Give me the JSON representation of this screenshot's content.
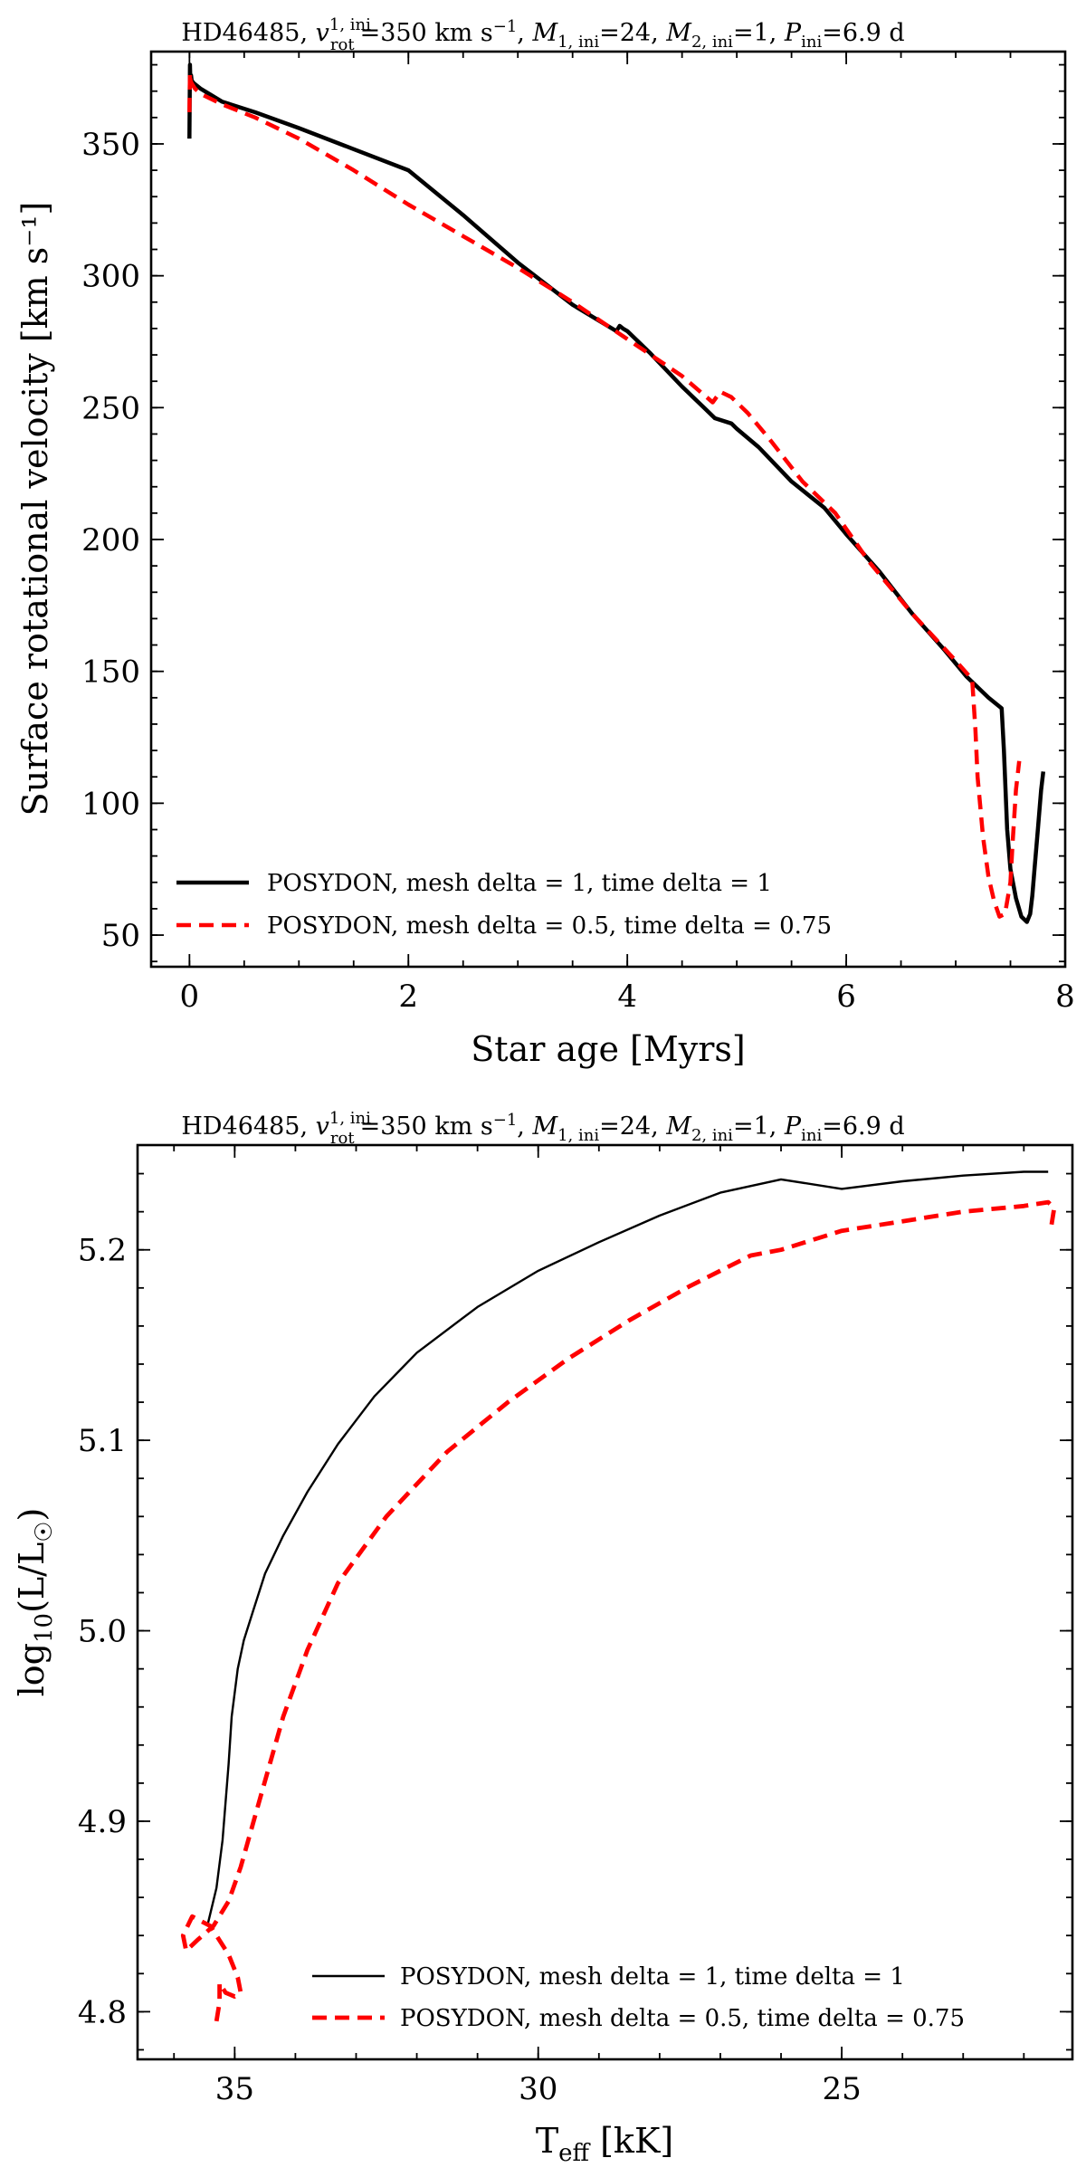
{
  "chart_data": [
    {
      "type": "line",
      "title": "HD46485, v_rot^{1,ini}=350 km s^{-1}, M_{1,ini}=24, M_{2,ini}=1, P_ini=6.9 d",
      "title_display": "HD46485, v_rot^{1, ini}=350 km s⁻¹, M_{1, ini}=24, M_{2, ini}=1, P_{ini}=6.9 d",
      "title_parts": {
        "star": "HD46485, ",
        "v": "v",
        "v_sup": "1, ini",
        "v_sub": "rot",
        "v_val": "=350 km s",
        "v_unit_exp": "−1",
        "m1": "M",
        "m1_sub": "1, ini",
        "m1_val": "=24, ",
        "m2": "M",
        "m2_sub": "2, ini",
        "m2_val": "=1, ",
        "p": "P",
        "p_sub": "ini",
        "p_val": "=6.9 d"
      },
      "xlabel": "Star age [Myrs]",
      "ylabel": "Surface rotational velocity [km s⁻¹]",
      "xlim": [
        -0.35,
        8.0
      ],
      "ylim": [
        38,
        385
      ],
      "xticks": [
        "0",
        "2",
        "4",
        "6",
        "8"
      ],
      "yticks": [
        "50",
        "100",
        "150",
        "200",
        "250",
        "300",
        "350"
      ],
      "xtick_values": [
        0,
        2,
        4,
        6,
        8
      ],
      "ytick_values": [
        50,
        100,
        150,
        200,
        250,
        300,
        350
      ],
      "legend_position": "lower-left",
      "series": [
        {
          "name": "POSYDON, mesh delta = 1, time delta = 1",
          "color": "#000000",
          "style": "solid",
          "x": [
            0,
            0.005,
            0.01,
            0.015,
            0.02,
            0.04,
            0.1,
            0.3,
            0.6,
            1.0,
            1.5,
            2.0,
            2.5,
            3.0,
            3.5,
            3.9,
            3.93,
            3.96,
            4.0,
            4.2,
            4.5,
            4.7,
            4.8,
            4.95,
            5.0,
            5.2,
            5.5,
            5.8,
            6.0,
            6.3,
            6.6,
            6.9,
            7.1,
            7.3,
            7.42,
            7.44,
            7.47,
            7.5,
            7.55,
            7.6,
            7.65,
            7.68,
            7.7,
            7.72,
            7.75,
            7.78,
            7.8
          ],
          "values": [
            352,
            380,
            372,
            376,
            374,
            373,
            371,
            366,
            362,
            356,
            348,
            340,
            323,
            305,
            289,
            279,
            281,
            280,
            279,
            271,
            258,
            250,
            246,
            244,
            242,
            235,
            222,
            212,
            202,
            188,
            172,
            158,
            148,
            140,
            136,
            120,
            90,
            75,
            64,
            57,
            55,
            58,
            65,
            75,
            90,
            105,
            112
          ]
        },
        {
          "name": "POSYDON, mesh delta = 0.5, time delta = 0.75",
          "color": "#ff0000",
          "style": "dashed",
          "x": [
            0,
            0.005,
            0.01,
            0.02,
            0.05,
            0.1,
            0.3,
            0.6,
            1.0,
            1.5,
            2.0,
            2.5,
            3.0,
            3.5,
            4.0,
            4.5,
            4.78,
            4.85,
            4.95,
            5.1,
            5.3,
            5.6,
            5.9,
            6.2,
            6.6,
            7.0,
            7.15,
            7.18,
            7.2,
            7.25,
            7.3,
            7.35,
            7.4,
            7.45,
            7.5,
            7.52,
            7.55,
            7.58
          ],
          "values": [
            362,
            377,
            374,
            373,
            371,
            369,
            365,
            360,
            352,
            340,
            327,
            315,
            303,
            290,
            276,
            262,
            252,
            256,
            254,
            248,
            238,
            222,
            210,
            192,
            172,
            154,
            147,
            128,
            110,
            87,
            72,
            63,
            57,
            58,
            70,
            85,
            105,
            116
          ]
        }
      ]
    },
    {
      "type": "line",
      "title": "HD46485, v_rot^{1,ini}=350 km s^{-1}, M_{1,ini}=24, M_{2,ini}=1, P_ini=6.9 d",
      "title_parts": {
        "star": "HD46485, ",
        "v": "v",
        "v_sup": "1, ini",
        "v_sub": "rot",
        "v_val": "=350 km s",
        "v_unit_exp": "−1",
        "m1": "M",
        "m1_sub": "1, ini",
        "m1_val": "=24, ",
        "m2": "M",
        "m2_sub": "2, ini",
        "m2_val": "=1, ",
        "p": "P",
        "p_sub": "ini",
        "p_val": "=6.9 d"
      },
      "xlabel": "T_eff [kK]",
      "xlabel_parts": {
        "base": "T",
        "sub": "eff",
        "unit": " [kK]"
      },
      "ylabel": "log10(L/L☉)",
      "ylabel_parts": {
        "base": "log",
        "sub": "10",
        "rest": "(L/L",
        "sub2": "☉",
        "close": ")"
      },
      "x_inverted": true,
      "xlim": [
        36.6,
        21.2
      ],
      "ylim": [
        4.775,
        5.255
      ],
      "xticks": [
        "35",
        "30",
        "25"
      ],
      "yticks": [
        "4.8",
        "4.9",
        "5.0",
        "5.1",
        "5.2"
      ],
      "xtick_values": [
        35,
        30,
        25
      ],
      "ytick_values": [
        4.8,
        4.9,
        5.0,
        5.1,
        5.2
      ],
      "legend_position": "lower-right",
      "series": [
        {
          "name": "POSYDON, mesh delta = 1, time delta = 1",
          "color": "#000000",
          "style": "solid",
          "x": [
            35.45,
            35.3,
            35.2,
            35.1,
            35.05,
            34.95,
            34.85,
            34.7,
            34.5,
            34.2,
            33.8,
            33.3,
            32.7,
            32.0,
            31.0,
            30.0,
            29.0,
            28.0,
            27.0,
            26.0,
            25.0,
            24.0,
            23.0,
            22.0,
            21.6
          ],
          "values": [
            4.845,
            4.865,
            4.89,
            4.93,
            4.955,
            4.98,
            4.995,
            5.01,
            5.03,
            5.05,
            5.073,
            5.098,
            5.123,
            5.146,
            5.17,
            5.189,
            5.204,
            5.218,
            5.23,
            5.237,
            5.232,
            5.236,
            5.239,
            5.241,
            5.241
          ]
        },
        {
          "name": "POSYDON, mesh delta = 0.5, time delta = 0.75",
          "color": "#ff0000",
          "style": "dashed",
          "x": [
            35.3,
            35.25,
            35.25,
            35.15,
            35.0,
            34.9,
            34.95,
            35.1,
            35.4,
            35.7,
            35.85,
            35.8,
            35.6,
            35.35,
            35.1,
            34.9,
            34.6,
            34.2,
            33.8,
            33.3,
            32.5,
            31.5,
            30.5,
            29.5,
            28.5,
            27.5,
            26.5,
            26.0,
            25.0,
            24.0,
            23.0,
            22.0,
            21.6,
            21.5,
            21.55
          ],
          "values": [
            4.795,
            4.805,
            4.815,
            4.81,
            4.808,
            4.81,
            4.818,
            4.83,
            4.845,
            4.85,
            4.84,
            4.832,
            4.838,
            4.845,
            4.858,
            4.876,
            4.91,
            4.955,
            4.99,
            5.025,
            5.06,
            5.094,
            5.12,
            5.143,
            5.163,
            5.181,
            5.197,
            5.2,
            5.21,
            5.215,
            5.22,
            5.223,
            5.225,
            5.222,
            5.212
          ]
        }
      ]
    }
  ]
}
